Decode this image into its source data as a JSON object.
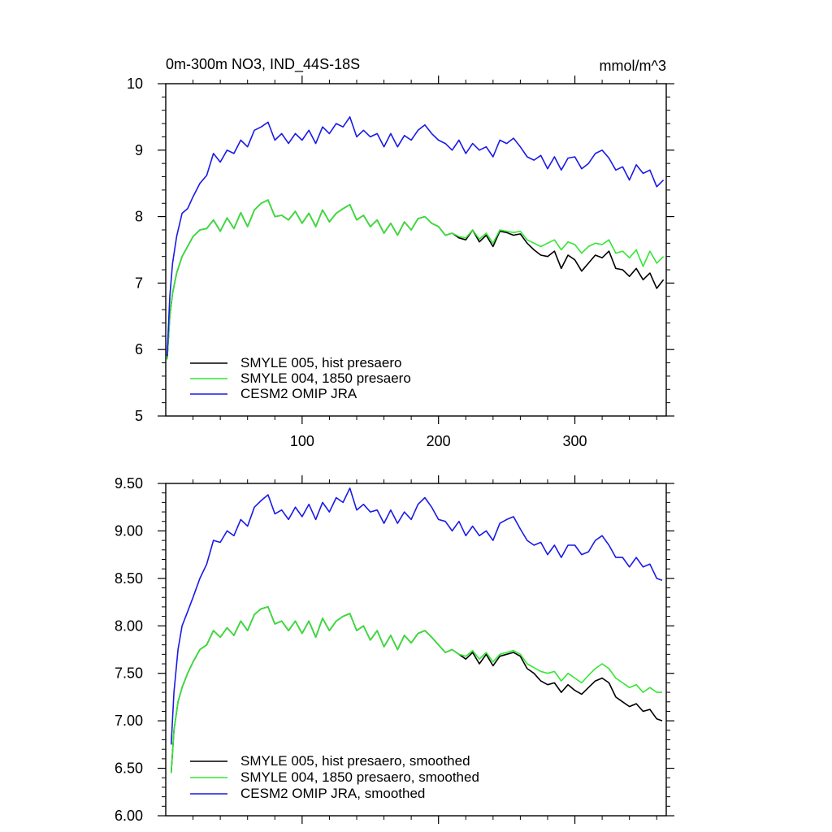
{
  "chart_data": [
    {
      "type": "line",
      "title": "0m-300m NO3, IND_44S-18S",
      "title_right": "mmol/m^3",
      "xlabel": "",
      "ylabel": "",
      "xlim": [
        0,
        367
      ],
      "ylim": [
        5,
        10
      ],
      "xticks": [
        100,
        200,
        300
      ],
      "xtick_labels": [
        "100",
        "200",
        "300"
      ],
      "yticks": [
        5,
        6,
        7,
        8,
        9,
        10
      ],
      "ytick_labels": [
        "5",
        "6",
        "7",
        "8",
        "9",
        "10"
      ],
      "grid": false,
      "legend_position": "bottom-left",
      "series": [
        {
          "name": "SMYLE 005, hist presaero",
          "color": "#000000",
          "x": [
            1,
            3,
            5,
            8,
            12,
            16,
            20,
            25,
            30,
            35,
            40,
            45,
            50,
            55,
            60,
            65,
            70,
            75,
            80,
            85,
            90,
            95,
            100,
            105,
            110,
            115,
            120,
            125,
            130,
            135,
            140,
            145,
            150,
            155,
            160,
            165,
            170,
            175,
            180,
            185,
            190,
            195,
            200,
            205,
            210,
            215,
            220,
            225,
            230,
            235,
            240,
            245,
            250,
            255,
            260,
            265,
            270,
            275,
            280,
            285,
            290,
            295,
            300,
            305,
            310,
            315,
            320,
            325,
            330,
            335,
            340,
            345,
            350,
            355,
            360,
            365
          ],
          "y": [
            5.85,
            6.5,
            6.85,
            7.15,
            7.4,
            7.55,
            7.7,
            7.8,
            7.82,
            7.95,
            7.78,
            7.98,
            7.82,
            8.06,
            7.85,
            8.1,
            8.2,
            8.25,
            8.0,
            8.02,
            7.95,
            8.08,
            7.9,
            8.05,
            7.85,
            8.1,
            7.92,
            8.05,
            8.12,
            8.18,
            7.95,
            8.02,
            7.85,
            7.95,
            7.75,
            7.9,
            7.72,
            7.92,
            7.8,
            7.97,
            8.0,
            7.9,
            7.85,
            7.72,
            7.75,
            7.68,
            7.65,
            7.8,
            7.62,
            7.72,
            7.55,
            7.78,
            7.76,
            7.72,
            7.74,
            7.6,
            7.5,
            7.42,
            7.4,
            7.48,
            7.22,
            7.42,
            7.35,
            7.18,
            7.3,
            7.42,
            7.38,
            7.48,
            7.22,
            7.2,
            7.1,
            7.22,
            7.05,
            7.15,
            6.92,
            7.05
          ]
        },
        {
          "name": "SMYLE 004, 1850 presaero",
          "color": "#33e633",
          "x": [
            1,
            3,
            5,
            8,
            12,
            16,
            20,
            25,
            30,
            35,
            40,
            45,
            50,
            55,
            60,
            65,
            70,
            75,
            80,
            85,
            90,
            95,
            100,
            105,
            110,
            115,
            120,
            125,
            130,
            135,
            140,
            145,
            150,
            155,
            160,
            165,
            170,
            175,
            180,
            185,
            190,
            195,
            200,
            205,
            210,
            215,
            220,
            225,
            230,
            235,
            240,
            245,
            250,
            255,
            260,
            265,
            270,
            275,
            280,
            285,
            290,
            295,
            300,
            305,
            310,
            315,
            320,
            325,
            330,
            335,
            340,
            345,
            350,
            355,
            360,
            365
          ],
          "y": [
            5.85,
            6.5,
            6.85,
            7.15,
            7.4,
            7.55,
            7.7,
            7.8,
            7.82,
            7.95,
            7.78,
            7.98,
            7.82,
            8.06,
            7.85,
            8.1,
            8.2,
            8.25,
            8.0,
            8.02,
            7.95,
            8.08,
            7.9,
            8.05,
            7.85,
            8.1,
            7.92,
            8.05,
            8.12,
            8.18,
            7.95,
            8.02,
            7.85,
            7.95,
            7.75,
            7.9,
            7.72,
            7.92,
            7.8,
            7.97,
            8.0,
            7.9,
            7.85,
            7.72,
            7.75,
            7.7,
            7.68,
            7.8,
            7.66,
            7.75,
            7.6,
            7.8,
            7.78,
            7.76,
            7.78,
            7.65,
            7.6,
            7.55,
            7.6,
            7.65,
            7.5,
            7.62,
            7.58,
            7.45,
            7.55,
            7.6,
            7.58,
            7.65,
            7.45,
            7.48,
            7.38,
            7.5,
            7.25,
            7.48,
            7.3,
            7.4
          ]
        },
        {
          "name": "CESM2 OMIP JRA",
          "color": "#1a1ae6",
          "x": [
            1,
            3,
            5,
            8,
            12,
            16,
            20,
            25,
            30,
            35,
            40,
            45,
            50,
            55,
            60,
            65,
            70,
            75,
            80,
            85,
            90,
            95,
            100,
            105,
            110,
            115,
            120,
            125,
            130,
            135,
            140,
            145,
            150,
            155,
            160,
            165,
            170,
            175,
            180,
            185,
            190,
            195,
            200,
            205,
            210,
            215,
            220,
            225,
            230,
            235,
            240,
            245,
            250,
            255,
            260,
            265,
            270,
            275,
            280,
            285,
            290,
            295,
            300,
            305,
            310,
            315,
            320,
            325,
            330,
            335,
            340,
            345,
            350,
            355,
            360,
            365
          ],
          "y": [
            5.9,
            6.8,
            7.3,
            7.7,
            8.05,
            8.12,
            8.3,
            8.5,
            8.62,
            8.95,
            8.82,
            9.0,
            8.95,
            9.15,
            9.05,
            9.3,
            9.35,
            9.42,
            9.15,
            9.25,
            9.1,
            9.25,
            9.15,
            9.3,
            9.1,
            9.35,
            9.25,
            9.4,
            9.35,
            9.5,
            9.2,
            9.3,
            9.2,
            9.25,
            9.05,
            9.25,
            9.05,
            9.22,
            9.15,
            9.3,
            9.38,
            9.25,
            9.15,
            9.1,
            9.0,
            9.15,
            8.95,
            9.1,
            9.0,
            9.05,
            8.9,
            9.15,
            9.1,
            9.18,
            9.05,
            8.9,
            8.85,
            8.92,
            8.72,
            8.9,
            8.7,
            8.88,
            8.9,
            8.72,
            8.8,
            8.95,
            9.0,
            8.88,
            8.7,
            8.75,
            8.55,
            8.78,
            8.65,
            8.7,
            8.45,
            8.55
          ]
        }
      ]
    },
    {
      "type": "line",
      "title": "",
      "xlabel": "",
      "ylabel": "",
      "xlim": [
        0,
        367
      ],
      "ylim": [
        6,
        9.5
      ],
      "xticks": [
        100,
        200,
        300
      ],
      "xtick_labels": [],
      "yticks": [
        6,
        6.5,
        7,
        7.5,
        8,
        8.5,
        9,
        9.5
      ],
      "ytick_labels": [
        "6.00",
        "6.50",
        "7.00",
        "7.50",
        "8.00",
        "8.50",
        "9.00",
        "9.50"
      ],
      "grid": false,
      "legend_position": "bottom-left",
      "series": [
        {
          "name": "SMYLE 005, hist presaero, smoothed",
          "color": "#000000",
          "x": [
            4,
            6,
            9,
            12,
            16,
            20,
            25,
            30,
            35,
            40,
            45,
            50,
            55,
            60,
            65,
            70,
            75,
            80,
            85,
            90,
            95,
            100,
            105,
            110,
            115,
            120,
            125,
            130,
            135,
            140,
            145,
            150,
            155,
            160,
            165,
            170,
            175,
            180,
            185,
            190,
            195,
            200,
            205,
            210,
            215,
            220,
            225,
            230,
            235,
            240,
            245,
            250,
            255,
            260,
            265,
            270,
            275,
            280,
            285,
            290,
            295,
            300,
            305,
            310,
            315,
            320,
            325,
            330,
            335,
            340,
            345,
            350,
            355,
            360,
            364
          ],
          "y": [
            6.45,
            6.9,
            7.2,
            7.35,
            7.5,
            7.62,
            7.75,
            7.8,
            7.95,
            7.88,
            7.98,
            7.9,
            8.05,
            7.95,
            8.12,
            8.18,
            8.2,
            8.02,
            8.05,
            7.95,
            8.05,
            7.92,
            8.05,
            7.88,
            8.08,
            7.95,
            8.05,
            8.1,
            8.13,
            7.95,
            8.0,
            7.85,
            7.95,
            7.78,
            7.9,
            7.75,
            7.9,
            7.82,
            7.92,
            7.95,
            7.88,
            7.8,
            7.72,
            7.75,
            7.7,
            7.65,
            7.72,
            7.6,
            7.7,
            7.58,
            7.68,
            7.7,
            7.72,
            7.68,
            7.55,
            7.5,
            7.42,
            7.38,
            7.4,
            7.3,
            7.38,
            7.32,
            7.28,
            7.35,
            7.42,
            7.45,
            7.4,
            7.25,
            7.2,
            7.15,
            7.18,
            7.1,
            7.12,
            7.02,
            7.0
          ]
        },
        {
          "name": "SMYLE 004, 1850 presaero, smoothed",
          "color": "#33e633",
          "x": [
            4,
            6,
            9,
            12,
            16,
            20,
            25,
            30,
            35,
            40,
            45,
            50,
            55,
            60,
            65,
            70,
            75,
            80,
            85,
            90,
            95,
            100,
            105,
            110,
            115,
            120,
            125,
            130,
            135,
            140,
            145,
            150,
            155,
            160,
            165,
            170,
            175,
            180,
            185,
            190,
            195,
            200,
            205,
            210,
            215,
            220,
            225,
            230,
            235,
            240,
            245,
            250,
            255,
            260,
            265,
            270,
            275,
            280,
            285,
            290,
            295,
            300,
            305,
            310,
            315,
            320,
            325,
            330,
            335,
            340,
            345,
            350,
            355,
            360,
            364
          ],
          "y": [
            6.45,
            6.9,
            7.2,
            7.35,
            7.5,
            7.62,
            7.75,
            7.8,
            7.95,
            7.88,
            7.98,
            7.9,
            8.05,
            7.95,
            8.12,
            8.18,
            8.2,
            8.02,
            8.05,
            7.95,
            8.05,
            7.92,
            8.05,
            7.88,
            8.08,
            7.95,
            8.05,
            8.1,
            8.13,
            7.95,
            8.0,
            7.85,
            7.95,
            7.78,
            7.9,
            7.75,
            7.9,
            7.82,
            7.92,
            7.95,
            7.88,
            7.8,
            7.72,
            7.75,
            7.7,
            7.68,
            7.74,
            7.65,
            7.72,
            7.62,
            7.7,
            7.72,
            7.74,
            7.7,
            7.6,
            7.56,
            7.52,
            7.5,
            7.52,
            7.42,
            7.5,
            7.45,
            7.4,
            7.48,
            7.55,
            7.6,
            7.55,
            7.45,
            7.4,
            7.35,
            7.38,
            7.3,
            7.35,
            7.3,
            7.3
          ]
        },
        {
          "name": "CESM2 OMIP JRA, smoothed",
          "color": "#1a1ae6",
          "x": [
            4,
            6,
            9,
            12,
            16,
            20,
            25,
            30,
            35,
            40,
            45,
            50,
            55,
            60,
            65,
            70,
            75,
            80,
            85,
            90,
            95,
            100,
            105,
            110,
            115,
            120,
            125,
            130,
            135,
            140,
            145,
            150,
            155,
            160,
            165,
            170,
            175,
            180,
            185,
            190,
            195,
            200,
            205,
            210,
            215,
            220,
            225,
            230,
            235,
            240,
            245,
            250,
            255,
            260,
            265,
            270,
            275,
            280,
            285,
            290,
            295,
            300,
            305,
            310,
            315,
            320,
            325,
            330,
            335,
            340,
            345,
            350,
            355,
            360,
            364
          ],
          "y": [
            6.75,
            7.3,
            7.75,
            8.0,
            8.15,
            8.3,
            8.5,
            8.65,
            8.9,
            8.88,
            9.0,
            8.95,
            9.12,
            9.05,
            9.25,
            9.32,
            9.38,
            9.18,
            9.22,
            9.12,
            9.25,
            9.15,
            9.28,
            9.12,
            9.3,
            9.2,
            9.35,
            9.3,
            9.45,
            9.22,
            9.28,
            9.2,
            9.22,
            9.08,
            9.22,
            9.08,
            9.2,
            9.12,
            9.28,
            9.35,
            9.25,
            9.12,
            9.1,
            9.0,
            9.1,
            8.95,
            9.05,
            8.95,
            9.0,
            8.9,
            9.08,
            9.12,
            9.15,
            9.02,
            8.9,
            8.85,
            8.88,
            8.75,
            8.85,
            8.72,
            8.85,
            8.85,
            8.75,
            8.78,
            8.9,
            8.95,
            8.85,
            8.72,
            8.72,
            8.62,
            8.72,
            8.62,
            8.65,
            8.5,
            8.48
          ]
        }
      ]
    }
  ]
}
